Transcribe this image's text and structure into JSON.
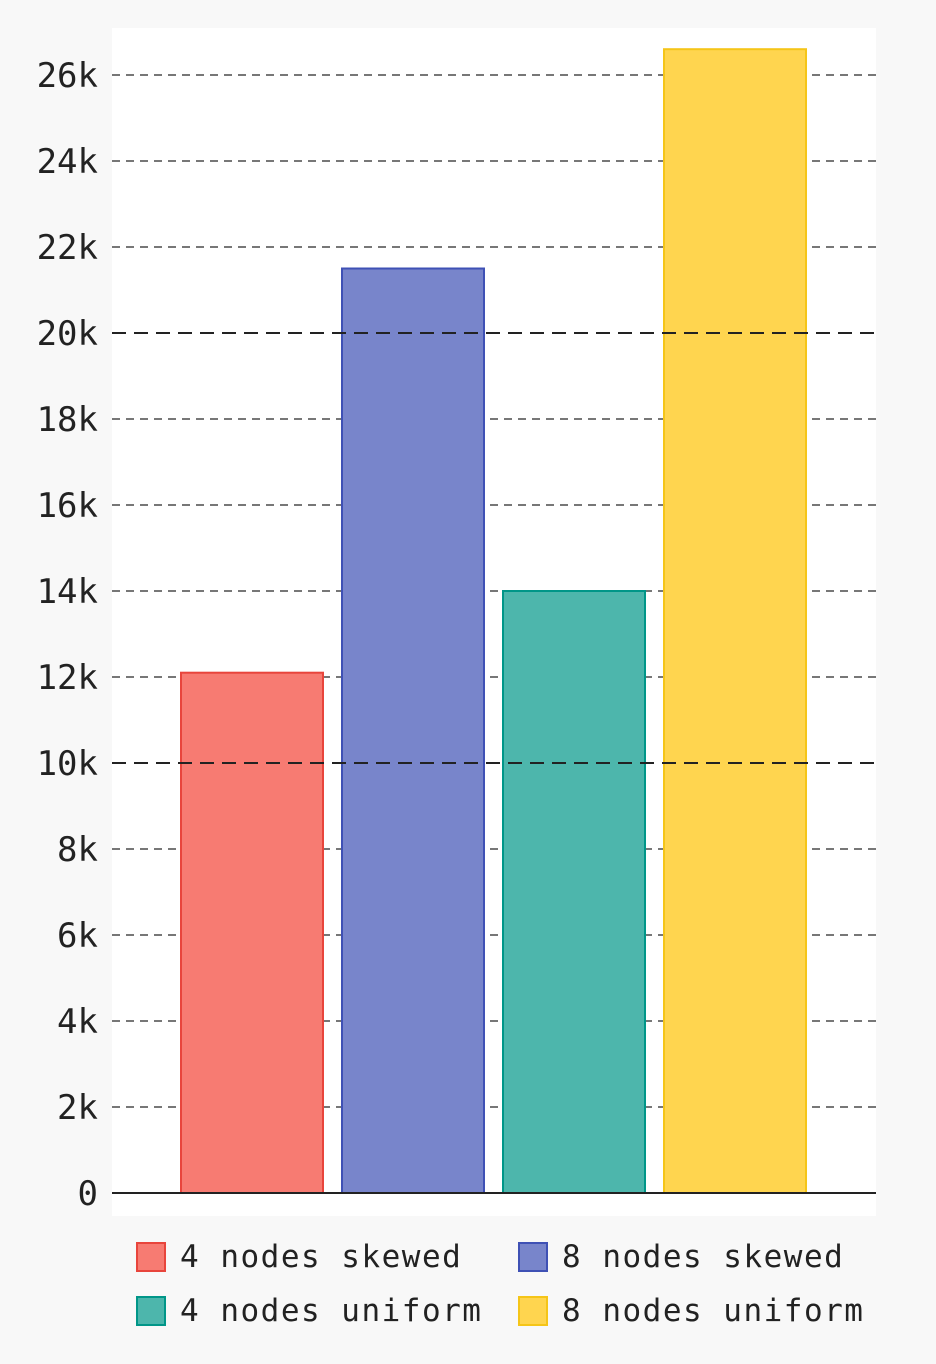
{
  "chart_data": {
    "type": "bar",
    "title": "",
    "xlabel": "",
    "ylabel": "",
    "ylim": [
      0,
      27000
    ],
    "y_ticks": [
      0,
      2000,
      4000,
      6000,
      8000,
      10000,
      12000,
      14000,
      16000,
      18000,
      20000,
      22000,
      24000,
      26000
    ],
    "y_tick_labels": [
      "0",
      "2k",
      "4k",
      "6k",
      "8k",
      "10k",
      "12k",
      "14k",
      "16k",
      "18k",
      "20k",
      "22k",
      "24k",
      "26k"
    ],
    "grid": true,
    "legend_placement": "bottom",
    "series": [
      {
        "name": "4 nodes skewed",
        "value": 12100,
        "fill": "#f77b72",
        "stroke": "#e8453c"
      },
      {
        "name": "8 nodes skewed",
        "value": 21500,
        "fill": "#7885cb",
        "stroke": "#3f51b5"
      },
      {
        "name": "4 nodes uniform",
        "value": 14000,
        "fill": "#4db6ac",
        "stroke": "#009688"
      },
      {
        "name": "8 nodes uniform",
        "value": 26600,
        "fill": "#ffd54f",
        "stroke": "#f5c518"
      }
    ]
  }
}
